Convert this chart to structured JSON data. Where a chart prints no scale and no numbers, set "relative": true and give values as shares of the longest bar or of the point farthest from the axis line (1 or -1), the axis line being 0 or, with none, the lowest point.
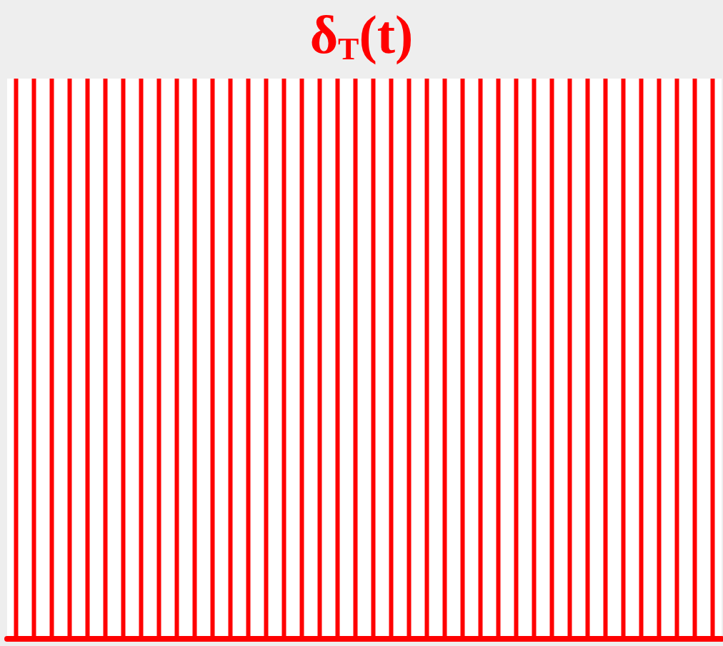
{
  "chart_data": {
    "type": "bar",
    "title": "δ$_{T}$(t)",
    "relative": true,
    "color": "#ff0000",
    "categories": [
      null,
      null,
      null,
      null,
      null,
      null,
      null,
      null,
      null,
      null,
      null,
      null,
      null,
      null,
      null,
      null,
      null,
      null,
      null,
      null,
      null,
      null,
      null,
      null,
      null,
      null,
      null,
      null,
      null,
      null,
      null,
      null,
      null,
      null,
      null,
      null,
      null,
      null,
      null,
      null
    ],
    "values": [
      1,
      1,
      1,
      1,
      1,
      1,
      1,
      1,
      1,
      1,
      1,
      1,
      1,
      1,
      1,
      1,
      1,
      1,
      1,
      1,
      1,
      1,
      1,
      1,
      1,
      1,
      1,
      1,
      1,
      1,
      1,
      1,
      1,
      1,
      1,
      1,
      1,
      1,
      1,
      1
    ],
    "grid": false
  }
}
